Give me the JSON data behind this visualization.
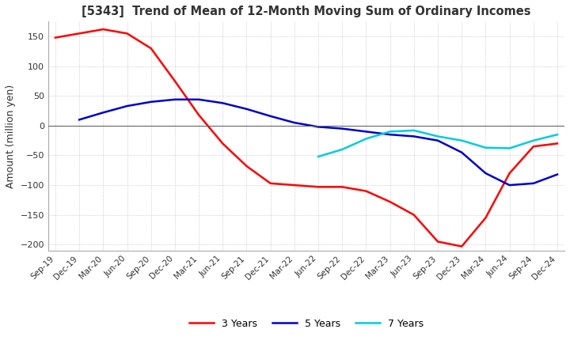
{
  "title": "[5343]  Trend of Mean of 12-Month Moving Sum of Ordinary Incomes",
  "ylabel": "Amount (million yen)",
  "ylim": [
    -210,
    175
  ],
  "yticks": [
    -200,
    -150,
    -100,
    -50,
    0,
    50,
    100,
    150
  ],
  "background_color": "#ffffff",
  "grid_color": "#aaaaaa",
  "x_labels": [
    "Sep-19",
    "Dec-19",
    "Mar-20",
    "Jun-20",
    "Sep-20",
    "Dec-20",
    "Mar-21",
    "Jun-21",
    "Sep-21",
    "Dec-21",
    "Mar-22",
    "Jun-22",
    "Sep-22",
    "Dec-22",
    "Mar-23",
    "Jun-23",
    "Sep-23",
    "Dec-23",
    "Mar-24",
    "Jun-24",
    "Sep-24",
    "Dec-24"
  ],
  "series": {
    "3 Years": {
      "color": "#ff0000",
      "values": [
        148,
        155,
        162,
        155,
        130,
        75,
        18,
        -30,
        -68,
        -97,
        -100,
        -103,
        -103,
        -110,
        -128,
        -150,
        -195,
        -203,
        -155,
        -80,
        -35,
        -30
      ]
    },
    "5 Years": {
      "color": "#0000cc",
      "values": [
        null,
        10,
        22,
        33,
        40,
        44,
        44,
        38,
        28,
        16,
        5,
        -2,
        -5,
        -10,
        -15,
        -18,
        -25,
        -45,
        -80,
        -100,
        -97,
        -82
      ]
    },
    "7 Years": {
      "color": "#00ccdd",
      "values": [
        null,
        null,
        null,
        null,
        null,
        null,
        null,
        null,
        null,
        null,
        null,
        -52,
        -40,
        -22,
        -10,
        -8,
        -18,
        -25,
        -37,
        -38,
        -25,
        -15
      ]
    },
    "10 Years": {
      "color": "#008800",
      "values": [
        null,
        null,
        null,
        null,
        null,
        null,
        null,
        null,
        null,
        null,
        null,
        null,
        null,
        null,
        null,
        null,
        null,
        null,
        null,
        null,
        null,
        null
      ]
    }
  }
}
